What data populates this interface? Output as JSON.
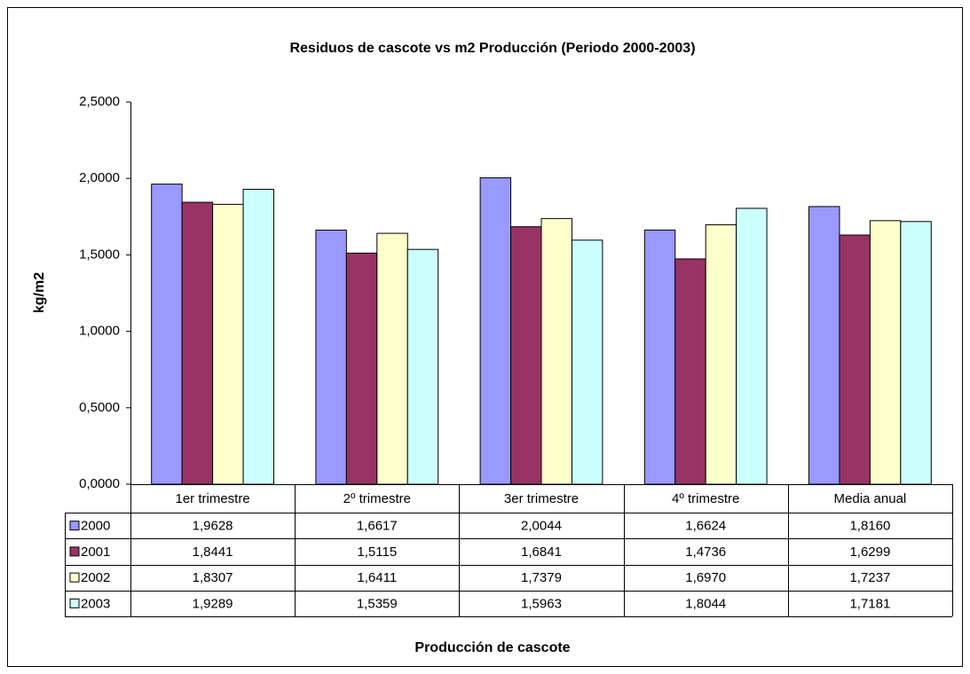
{
  "chart_data": {
    "type": "bar",
    "title": "Residuos de cascote vs m2 Producción (Periodo 2000-2003)",
    "y_label": "kg/m2",
    "x_label": "Producción de cascote",
    "categories": [
      "1er trimestre",
      "2º trimestre",
      "3er trimestre",
      "4º trimestre",
      "Media anual"
    ],
    "series": [
      {
        "name": "2000",
        "color": "#9999ff",
        "values": [
          1.9628,
          1.6617,
          2.0044,
          1.6624,
          1.816
        ],
        "value_labels": [
          "1,9628",
          "1,6617",
          "2,0044",
          "1,6624",
          "1,8160"
        ]
      },
      {
        "name": "2001",
        "color": "#993366",
        "values": [
          1.8441,
          1.5115,
          1.6841,
          1.4736,
          1.6299
        ],
        "value_labels": [
          "1,8441",
          "1,5115",
          "1,6841",
          "1,4736",
          "1,6299"
        ]
      },
      {
        "name": "2002",
        "color": "#ffffcc",
        "values": [
          1.8307,
          1.6411,
          1.7379,
          1.697,
          1.7237
        ],
        "value_labels": [
          "1,8307",
          "1,6411",
          "1,7379",
          "1,6970",
          "1,7237"
        ]
      },
      {
        "name": "2003",
        "color": "#ccffff",
        "values": [
          1.9289,
          1.5359,
          1.5963,
          1.8044,
          1.7181
        ],
        "value_labels": [
          "1,9289",
          "1,5359",
          "1,5963",
          "1,8044",
          "1,7181"
        ]
      }
    ],
    "ylim": [
      0,
      2.5
    ],
    "yticks": [
      {
        "value": 0,
        "label": "0,0000"
      },
      {
        "value": 0.5,
        "label": "0,5000"
      },
      {
        "value": 1,
        "label": "1,0000"
      },
      {
        "value": 1.5,
        "label": "1,5000"
      },
      {
        "value": 2,
        "label": "2,0000"
      },
      {
        "value": 2.5,
        "label": "2,5000"
      }
    ],
    "grid": false
  }
}
